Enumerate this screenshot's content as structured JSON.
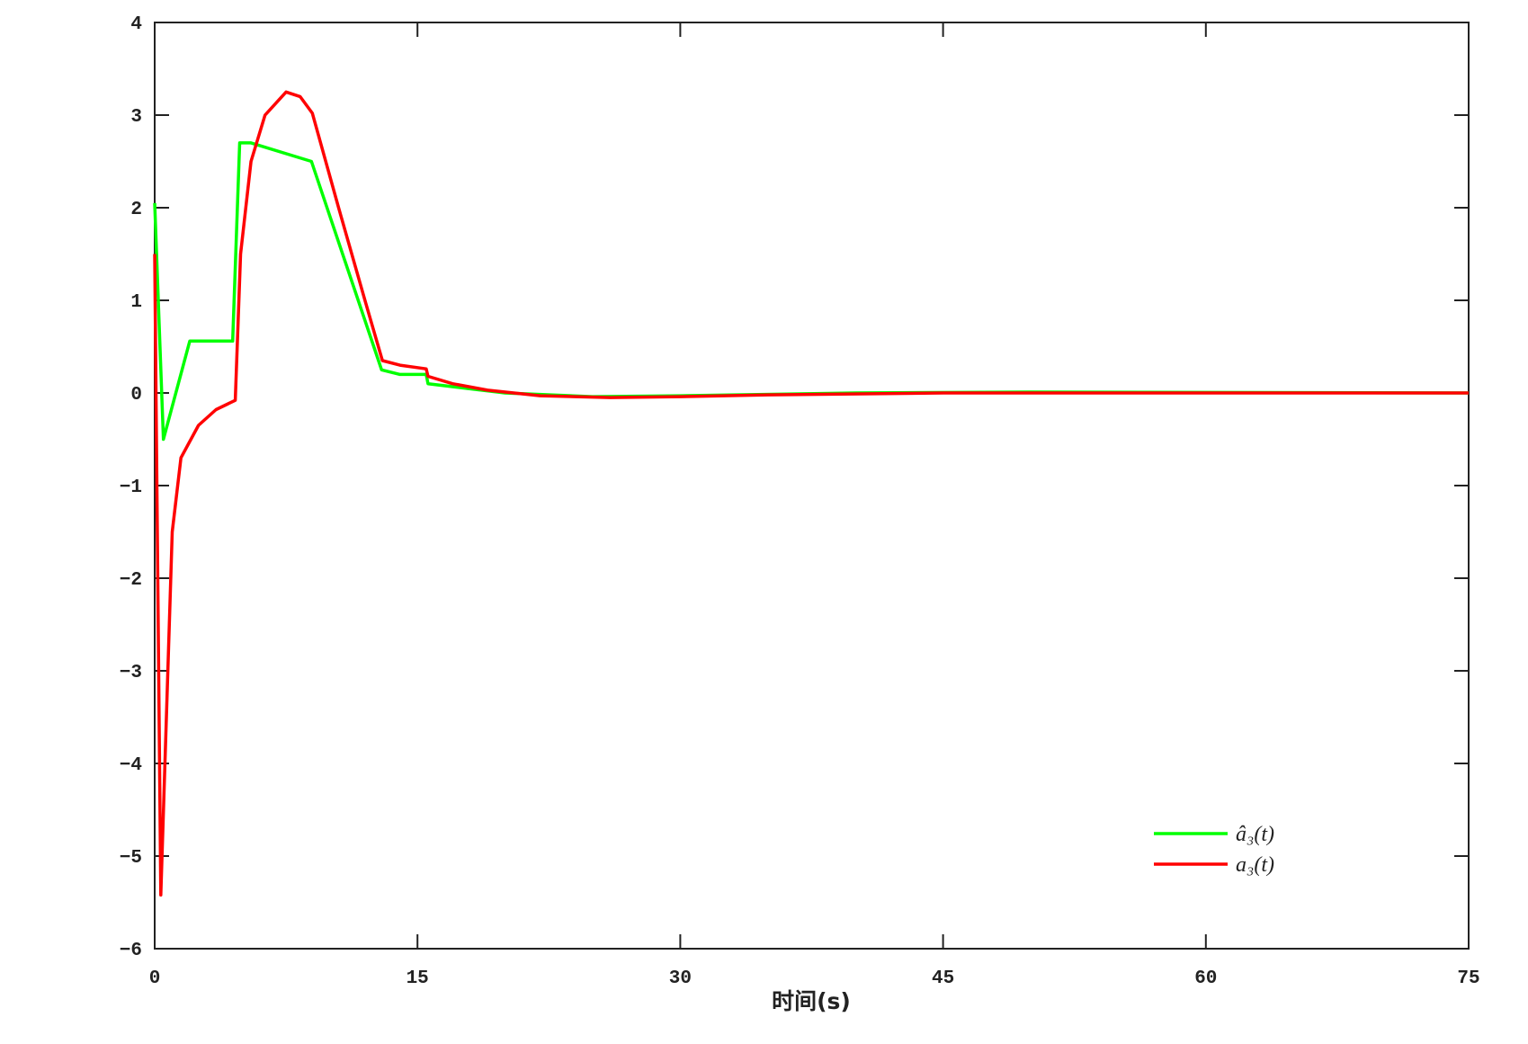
{
  "chart_data": {
    "type": "line",
    "xlabel": "时间(s)",
    "xlim": [
      0,
      75
    ],
    "xticks": [
      0,
      15,
      30,
      45,
      60,
      75
    ],
    "ylim": [
      -6,
      4
    ],
    "yticks": [
      {
        "value": -6,
        "label": "−6"
      },
      {
        "value": -5,
        "label": "−5"
      },
      {
        "value": -4,
        "label": "−4"
      },
      {
        "value": -3,
        "label": "−3"
      },
      {
        "value": -2,
        "label": "−2"
      },
      {
        "value": -1,
        "label": "−1"
      },
      0,
      1,
      2,
      3,
      4
    ],
    "legend": "lower right",
    "series": [
      {
        "name": "â₃(t)",
        "color": "#00ff00",
        "x": [
          0,
          0.5,
          2,
          4.45,
          4.85,
          5.5,
          8.95,
          12.95,
          14,
          15.5,
          15.6,
          20,
          25,
          30,
          40,
          50,
          75
        ],
        "values": [
          2.05,
          -0.5,
          0.56,
          0.56,
          2.7,
          2.7,
          2.5,
          0.25,
          0.2,
          0.2,
          0.1,
          0.0,
          -0.04,
          -0.03,
          0,
          0.01,
          0
        ]
      },
      {
        "name": "a₃(t)",
        "color": "#ff0000",
        "x": [
          0,
          0.35,
          1,
          1.5,
          2.5,
          3.5,
          4.6,
          4.9,
          5.5,
          6.3,
          7.5,
          8.3,
          9,
          10.5,
          12,
          13,
          14,
          15.5,
          15.6,
          17,
          19,
          22,
          26,
          30,
          35,
          45,
          75
        ],
        "values": [
          1.5,
          -5.42,
          -1.5,
          -0.7,
          -0.35,
          -0.18,
          -0.08,
          1.5,
          2.5,
          3.0,
          3.25,
          3.2,
          3.02,
          2.0,
          1.0,
          0.35,
          0.3,
          0.26,
          0.18,
          0.1,
          0.03,
          -0.03,
          -0.05,
          -0.04,
          -0.02,
          0,
          0
        ]
      }
    ]
  }
}
